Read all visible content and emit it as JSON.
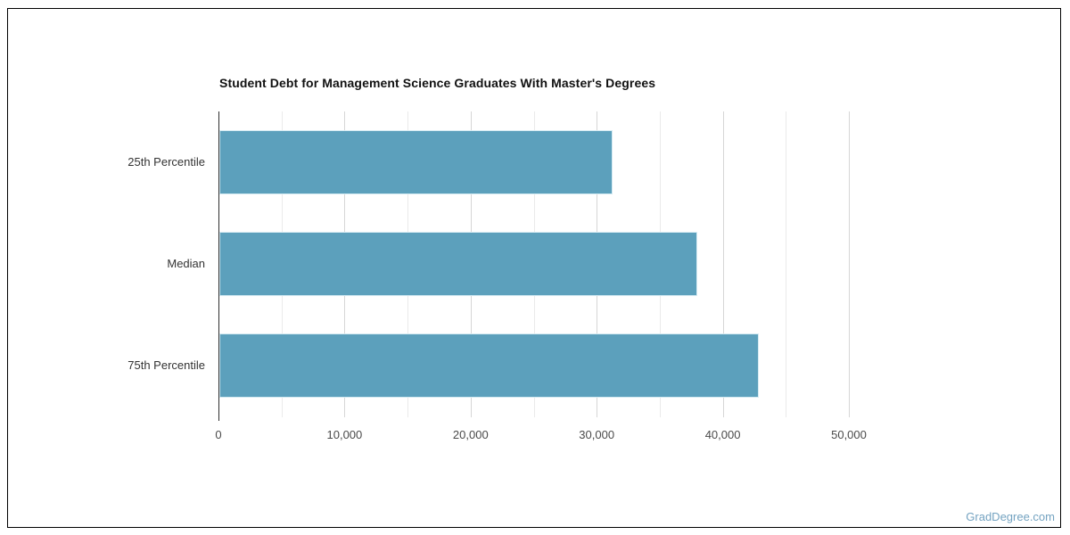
{
  "page": {
    "watermark": "GradDegree.com",
    "border_color": "#000000",
    "background_color": "#ffffff"
  },
  "chart_data": {
    "type": "bar",
    "orientation": "horizontal",
    "title": "Student Debt for Management Science Graduates With Master's Degrees",
    "categories": [
      "25th Percentile",
      "Median",
      "75th Percentile"
    ],
    "values": [
      31200,
      37900,
      42800
    ],
    "xlabel": "",
    "ylabel": "",
    "xlim": [
      0,
      50000
    ],
    "x_ticks": [
      0,
      10000,
      20000,
      30000,
      40000,
      50000
    ],
    "x_tick_labels": [
      "0",
      "10,000",
      "20,000",
      "30,000",
      "40,000",
      "50,000"
    ],
    "minor_grid_step": 5000,
    "grid": true,
    "legend": false,
    "colors": {
      "bar_fill": "#5CA0BC",
      "bar_border": "#D5EAF2",
      "major_grid": "#D6D6D6",
      "minor_grid": "#EAEAEA",
      "axis_line": "#2E2E2E",
      "tick_label": "#4A4A4A",
      "category_label": "#333333",
      "title": "#111111",
      "watermark": "#74A3C1"
    }
  }
}
